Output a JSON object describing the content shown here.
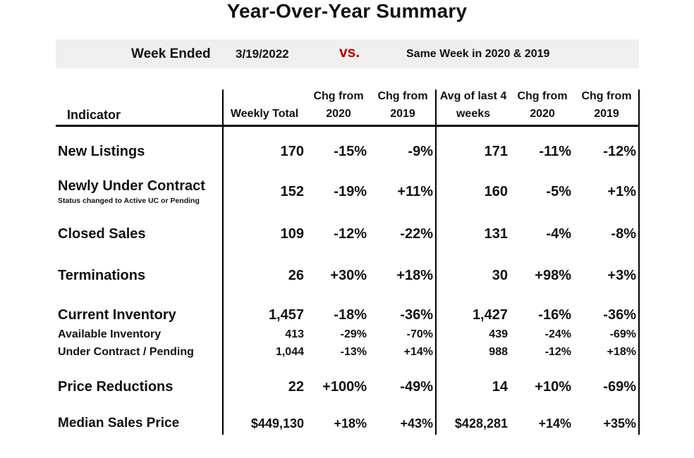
{
  "title": "Year-Over-Year Summary",
  "banner": {
    "week_label": "Week Ended",
    "date": "3/19/2022",
    "vs": "vs.",
    "comparison": "Same Week in 2020 & 2019"
  },
  "headers": {
    "indicator": "Indicator",
    "weekly_total": "Weekly Total",
    "chg_2020_line1": "Chg from",
    "chg_2020_line2": "2020",
    "chg_2019_line1": "Chg from",
    "chg_2019_line2": "2019",
    "avg_line1": "Avg of last 4",
    "avg_line2": "weeks",
    "avg_chg_2020_line1": "Chg from",
    "avg_chg_2020_line2": "2020",
    "avg_chg_2019_line1": "Chg from",
    "avg_chg_2019_line2": "2019"
  },
  "rows": [
    {
      "label": "New Listings",
      "note": "",
      "values": [
        "170",
        "-15%",
        "-9%",
        "171",
        "-11%",
        "-12%"
      ]
    },
    {
      "label": "Newly Under Contract",
      "note": "Status changed to Active UC or Pending",
      "values": [
        "152",
        "-19%",
        "+11%",
        "160",
        "-5%",
        "+1%"
      ]
    },
    {
      "label": "Closed Sales",
      "note": "",
      "values": [
        "109",
        "-12%",
        "-22%",
        "131",
        "-4%",
        "-8%"
      ]
    },
    {
      "label": "Terminations",
      "note": "",
      "values": [
        "26",
        "+30%",
        "+18%",
        "30",
        "+98%",
        "+3%"
      ]
    },
    {
      "label": "Current Inventory",
      "note": "",
      "values": [
        "1,457",
        "-18%",
        "-36%",
        "1,427",
        "-16%",
        "-36%"
      ]
    },
    {
      "label": "Available Inventory",
      "note": "",
      "values": [
        "413",
        "-29%",
        "-70%",
        "439",
        "-24%",
        "-69%"
      ]
    },
    {
      "label": "Under Contract / Pending",
      "note": "",
      "values": [
        "1,044",
        "-13%",
        "+14%",
        "988",
        "-12%",
        "+18%"
      ]
    },
    {
      "label": "Price Reductions",
      "note": "",
      "values": [
        "22",
        "+100%",
        "-49%",
        "14",
        "+10%",
        "-69%"
      ]
    },
    {
      "label": "Median Sales Price",
      "note": "",
      "values": [
        "$449,130",
        "+18%",
        "+43%",
        "$428,281",
        "+14%",
        "+35%"
      ]
    }
  ]
}
